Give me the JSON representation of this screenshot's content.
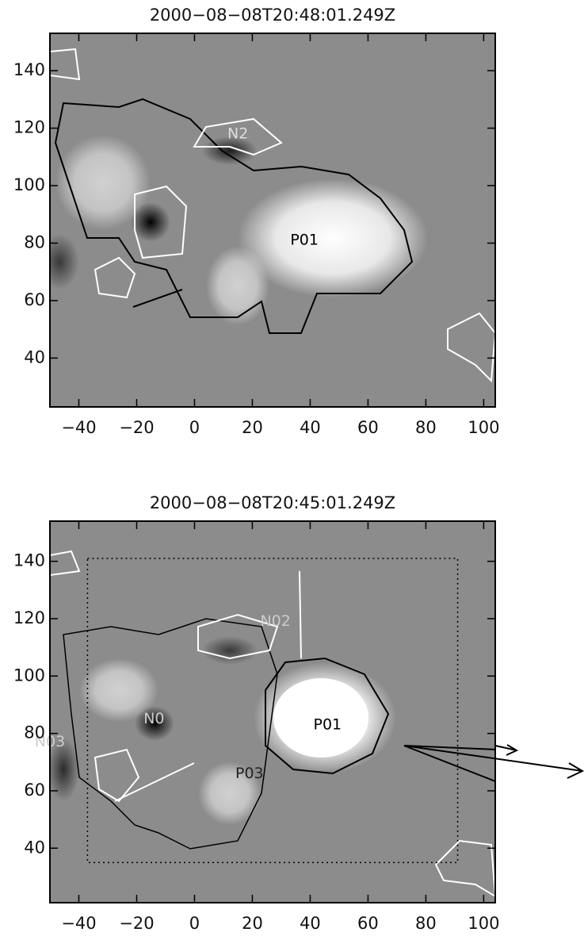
{
  "chart_data": [
    {
      "type": "image",
      "title": "2000−08−08T20:48:01.249Z",
      "xlim": [
        -50,
        104
      ],
      "ylim": [
        23,
        153
      ],
      "xticks": [
        {
          "value": -40,
          "label": "−40"
        },
        {
          "value": -20,
          "label": "−20"
        },
        0,
        20,
        40,
        60,
        80,
        100
      ],
      "yticks": [
        40,
        60,
        80,
        100,
        120,
        140
      ],
      "annotations": [
        {
          "text": "N2",
          "x": 15,
          "y": 118,
          "color": "#dddddd"
        },
        {
          "text": "P01",
          "x": 38,
          "y": 81,
          "color": "#000000"
        }
      ]
    },
    {
      "type": "image",
      "title": "2000−08−08T20:45:01.249Z",
      "xlim": [
        -50,
        104
      ],
      "ylim": [
        21,
        154
      ],
      "xticks": [
        {
          "value": -40,
          "label": "−40"
        },
        {
          "value": -20,
          "label": "−20"
        },
        0,
        20,
        40,
        60,
        80,
        100
      ],
      "yticks": [
        40,
        60,
        80,
        100,
        120,
        140
      ],
      "region": {
        "x": [
          -37,
          91
        ],
        "y": [
          35,
          141
        ]
      },
      "annotations": [
        {
          "text": "N02",
          "x": 28,
          "y": 119,
          "color": "#cccccc"
        },
        {
          "text": "P01",
          "x": 46,
          "y": 83,
          "color": "#000000"
        },
        {
          "text": "N0",
          "x": -14,
          "y": 85,
          "color": "#cccccc"
        },
        {
          "text": "N03",
          "x": -50,
          "y": 77,
          "color": "#cccccc"
        },
        {
          "text": "P03",
          "x": 19,
          "y": 66,
          "color": "#222222"
        }
      ]
    }
  ]
}
